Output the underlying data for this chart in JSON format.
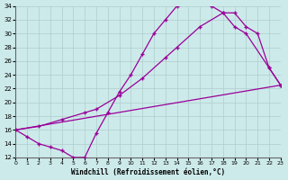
{
  "xlabel": "Windchill (Refroidissement éolien,°C)",
  "background_color": "#cdeaea",
  "grid_color": "#b0cccc",
  "line_color": "#990099",
  "xlim": [
    0,
    23
  ],
  "ylim": [
    12,
    34
  ],
  "yticks": [
    12,
    14,
    16,
    18,
    20,
    22,
    24,
    26,
    28,
    30,
    32,
    34
  ],
  "xticks": [
    0,
    1,
    2,
    3,
    4,
    5,
    6,
    7,
    8,
    9,
    10,
    11,
    12,
    13,
    14,
    15,
    16,
    17,
    18,
    19,
    20,
    21,
    22,
    23
  ],
  "curve1_x": [
    0,
    1,
    2,
    3,
    4,
    5,
    6,
    7,
    8,
    9,
    10,
    11,
    12,
    13,
    14,
    15,
    16,
    17,
    18,
    19,
    20,
    21,
    22,
    23
  ],
  "curve1_y": [
    16,
    15,
    14,
    13.5,
    13,
    12,
    12,
    15.5,
    18.5,
    21.5,
    24,
    27,
    30,
    32,
    34,
    34.5,
    34.5,
    34,
    33,
    33,
    31,
    30,
    25,
    22.5
  ],
  "curve2_x": [
    0,
    2,
    4,
    6,
    7,
    9,
    11,
    13,
    14,
    16,
    18,
    19,
    20,
    22,
    23
  ],
  "curve2_y": [
    16,
    16.5,
    17.5,
    18.5,
    19,
    21,
    23.5,
    26.5,
    28,
    31,
    33,
    31,
    30,
    25,
    22.5
  ],
  "curve3_x": [
    0,
    23
  ],
  "curve3_y": [
    16,
    22.5
  ]
}
